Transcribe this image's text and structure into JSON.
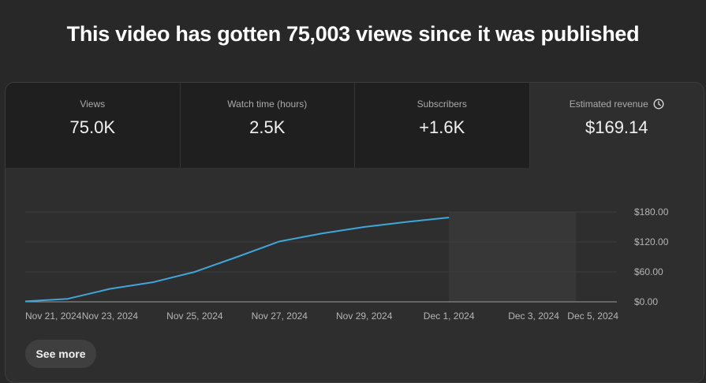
{
  "headline": "This video has gotten 75,003 views since it was published",
  "metrics": [
    {
      "label": "Views",
      "value": "75.0K"
    },
    {
      "label": "Watch time (hours)",
      "value": "2.5K"
    },
    {
      "label": "Subscribers",
      "value": "+1.6K"
    },
    {
      "label": "Estimated revenue",
      "value": "$169.14",
      "icon": "clock-icon"
    }
  ],
  "see_more_label": "See more",
  "colors": {
    "line": "#3ea6d9",
    "projection": "#373737",
    "grid": "#3c3c3c",
    "axis": "#b5b5b5"
  },
  "chart_data": {
    "type": "line",
    "title": "Estimated revenue",
    "x": [
      "Nov 21, 2024",
      "Nov 22, 2024",
      "Nov 23, 2024",
      "Nov 24, 2024",
      "Nov 25, 2024",
      "Nov 26, 2024",
      "Nov 27, 2024",
      "Nov 28, 2024",
      "Nov 29, 2024",
      "Nov 30, 2024",
      "Dec 1, 2024"
    ],
    "series": [
      {
        "name": "Estimated revenue",
        "values": [
          1,
          6,
          26,
          39,
          60,
          90,
          121,
          137,
          150,
          160,
          169
        ]
      }
    ],
    "x_ticks": [
      "Nov 21, 2024",
      "Nov 23, 2024",
      "Nov 25, 2024",
      "Nov 27, 2024",
      "Nov 29, 2024",
      "Dec 1, 2024",
      "Dec 3, 2024",
      "Dec 5, 2024"
    ],
    "y_ticks": [
      "$0.00",
      "$60.00",
      "$120.00",
      "$180.00"
    ],
    "y_tick_values": [
      0,
      60,
      120,
      180
    ],
    "ylim": [
      0,
      180
    ],
    "x_range_days": [
      0,
      14
    ],
    "projection_days": [
      10,
      13
    ],
    "tick_days": [
      0,
      2,
      4,
      6,
      8,
      10,
      12,
      14
    ]
  }
}
